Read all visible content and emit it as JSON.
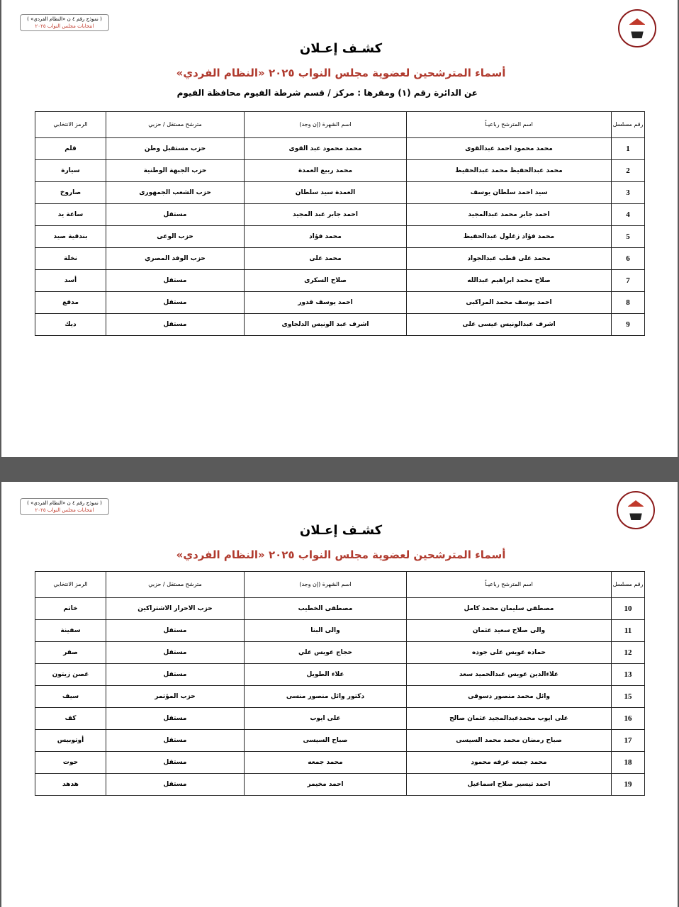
{
  "form_label": {
    "line1": "( نموذج رقم ٤ ن «النظام الفردي» )",
    "line2": "انتخابات مجلس النواب ٢٠٢٥"
  },
  "title": "كشـف إعـلان",
  "subtitle": "أسماء المترشحين لعضوية مجلس النواب ٢٠٢٥ «النظام الفردي»",
  "district": "عن الدائرة رقم  (١)   ومقرها : مركز / قسم شرطة  الفيوم   محافظة  الفيوم",
  "columns": [
    "رقم مسلسل",
    "اسم المترشح رباعيـاً",
    "اسم الشهرة (إن وجد)",
    "مترشح مستقل / حزبي",
    "الرمز الانتخابي"
  ],
  "page1_rows": [
    [
      "1",
      "محمد محمود احمد عبدالقوى",
      "محمد محمود عبد القوى",
      "حزب مستقبل وطن",
      "قلم"
    ],
    [
      "2",
      "محمد عبدالحفيظ محمد عبدالحفيظ",
      "محمد ربيع العمدة",
      "حزب الجبهة الوطنية",
      "سيارة"
    ],
    [
      "3",
      "سيد احمد سلطان يوسف",
      "العمدة سيد سلطان",
      "حزب الشعب الجمهورى",
      "صاروخ"
    ],
    [
      "4",
      "احمد جابر محمد عبدالمجيد",
      "احمد جابر عبد المجيد",
      "مستقل",
      "ساعة يد"
    ],
    [
      "5",
      "محمد فؤاد زغلول عبدالحفيظ",
      "محمد فؤاد",
      "حزب الوعى",
      "بندقية صيد"
    ],
    [
      "6",
      "محمد على قطب عبدالجواد",
      "محمد على",
      "حزب الوفد المصري",
      "نخلة"
    ],
    [
      "7",
      "صلاح محمد ابراهيم عبدالله",
      "صلاح السكرى",
      "مستقل",
      "أسد"
    ],
    [
      "8",
      "احمد يوسف محمد المراكبى",
      "احمد يوسف قدور",
      "مستقل",
      "مدفع"
    ],
    [
      "9",
      "اشرف عبدالونيس عيسى على",
      "اشرف عبد الونيس الدلجاوى",
      "مستقل",
      "ديك"
    ]
  ],
  "page2_rows": [
    [
      "10",
      "مصطفى سليمان محمد كامل",
      "مصطفى الخطيب",
      "حزب الاحرار الاشتراكين",
      "خاتم"
    ],
    [
      "11",
      "والى صلاح سعيد عثمان",
      "والى البنا",
      "مستقل",
      "سفينة"
    ],
    [
      "12",
      "حماده عويس على جوده",
      "حجاج عويس علي",
      "مستقل",
      "صقر"
    ],
    [
      "13",
      "علاءالدين عويس عبدالحميد سعد",
      "علاء الطويل",
      "مستقل",
      "غصن زيتون"
    ],
    [
      "15",
      "وائل محمد منصور دسوقى",
      "دكتور وائل منصور منسى",
      "حزب المؤتمر",
      "سيف"
    ],
    [
      "16",
      "على ايوب محمدعبدالمجيد عثمان صالح",
      "على ايوب",
      "مستقل",
      "كف"
    ],
    [
      "17",
      "صباح رمضان محمد محمد السيسى",
      "صباح السيسى",
      "مستقل",
      "أوتوبيس"
    ],
    [
      "18",
      "محمد جمعه عرفه محمود",
      "محمد جمعه",
      "مستقل",
      "حوت"
    ],
    [
      "19",
      "احمد تيسير صلاح اسماعيل",
      "احمد مخيمر",
      "مستقل",
      "هدهد"
    ]
  ]
}
